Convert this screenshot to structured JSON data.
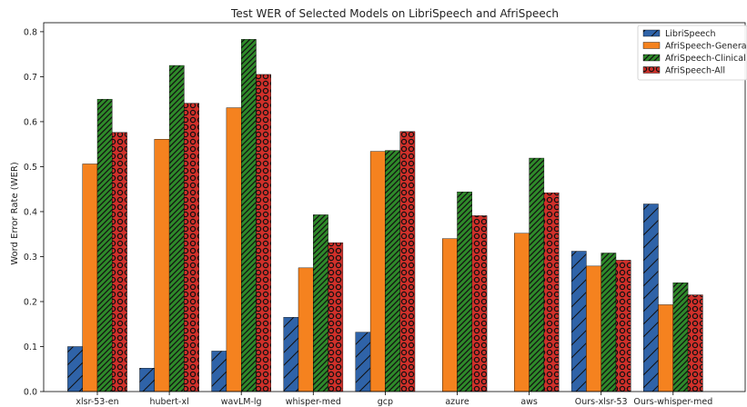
{
  "chart_data": {
    "type": "bar",
    "title": "Test WER of Selected Models on LibriSpeech and AfriSpeech",
    "xlabel": "",
    "ylabel": "Word Error Rate (WER)",
    "ylim": [
      0,
      0.82
    ],
    "yticks": [
      "0.0",
      "0.1",
      "0.2",
      "0.3",
      "0.4",
      "0.5",
      "0.6",
      "0.7",
      "0.8"
    ],
    "grid": false,
    "legend_position": "top-right",
    "categories": [
      "xlsr-53-en",
      "hubert-xl",
      "wavLM-lg",
      "whisper-med",
      "gcp",
      "azure",
      "aws",
      "Ours-xlsr-53",
      "Ours-whisper-med"
    ],
    "series": [
      {
        "name": "LibriSpeech",
        "color": "#2f63a8",
        "hatch": "slash",
        "values": [
          0.1,
          0.052,
          0.09,
          0.165,
          0.132,
          null,
          null,
          0.312,
          0.417
        ]
      },
      {
        "name": "AfriSpeech-General",
        "color": "#f5821f",
        "hatch": "none",
        "values": [
          0.506,
          0.561,
          0.631,
          0.275,
          0.534,
          0.34,
          0.352,
          0.279,
          0.193
        ]
      },
      {
        "name": "AfriSpeech-Clinical",
        "color": "#2f8a2a",
        "hatch": "dense-slash",
        "values": [
          0.65,
          0.725,
          0.783,
          0.393,
          0.536,
          0.444,
          0.519,
          0.308,
          0.242
        ]
      },
      {
        "name": "AfriSpeech-All",
        "color": "#d0302a",
        "hatch": "circles",
        "values": [
          0.576,
          0.641,
          0.705,
          0.331,
          0.578,
          0.391,
          0.442,
          0.292,
          0.215
        ]
      }
    ]
  }
}
